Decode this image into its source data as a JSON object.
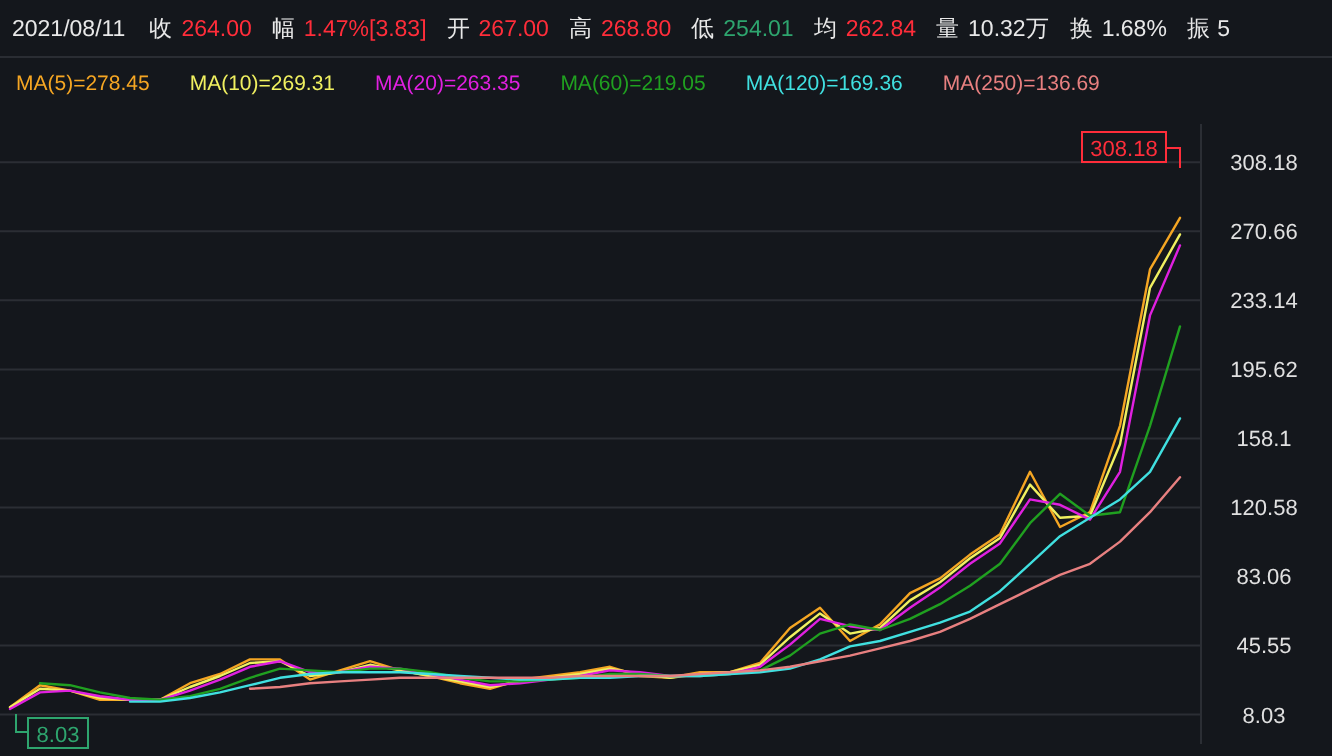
{
  "chart_data": {
    "type": "line",
    "title": "2021/08/11",
    "annotations": [
      "收",
      "264.00",
      "幅",
      "1.47%[3.83]",
      "开",
      "267.00",
      "高",
      "268.80",
      "低",
      "254.01",
      "均",
      "262.84",
      "量",
      "10.32万",
      "换",
      "1.68%",
      "振 5",
      "308.18",
      "8.03"
    ],
    "categories": [
      null,
      null,
      null,
      null,
      null,
      null,
      null,
      null,
      null,
      null,
      null,
      null,
      null,
      null,
      null,
      null,
      null,
      null,
      null,
      null,
      null,
      null,
      null,
      null,
      null,
      null,
      null,
      null,
      null,
      null,
      null,
      null,
      null,
      null,
      null,
      null,
      null,
      null,
      null,
      null
    ],
    "series": [
      {
        "name": "MA(5)=278.45",
        "color": "#f5a623",
        "values": [
          12,
          24,
          21,
          16,
          16,
          16,
          25,
          30,
          38,
          38,
          27,
          32,
          37,
          32,
          29,
          25,
          22,
          27,
          29,
          31,
          34,
          29,
          28,
          31,
          31,
          36,
          55,
          66,
          48,
          57,
          74,
          82,
          95,
          106,
          140,
          110,
          118,
          165,
          250,
          278
        ]
      },
      {
        "name": "MA(10)=269.31",
        "color": "#f0f060",
        "values": [
          12,
          22,
          21,
          17,
          16,
          16,
          23,
          29,
          36,
          37,
          29,
          31,
          35,
          32,
          29,
          26,
          23,
          26,
          28,
          30,
          33,
          30,
          28,
          30,
          31,
          35,
          50,
          63,
          52,
          55,
          70,
          80,
          93,
          104,
          133,
          115,
          116,
          155,
          240,
          269
        ]
      },
      {
        "name": "MA(20)=263.35",
        "color": "#e020e0",
        "values": [
          11,
          20,
          21,
          18,
          16,
          16,
          21,
          27,
          34,
          37,
          31,
          31,
          34,
          33,
          30,
          27,
          24,
          25,
          27,
          29,
          32,
          31,
          29,
          29,
          30,
          34,
          46,
          60,
          56,
          54,
          66,
          77,
          90,
          101,
          125,
          122,
          114,
          140,
          225,
          263
        ]
      },
      {
        "name": "MA(60)=219.05",
        "color": "#20a020",
        "values": [
          null,
          25,
          24,
          20,
          17,
          16,
          18,
          22,
          28,
          33,
          32,
          31,
          33,
          33,
          31,
          28,
          26,
          26,
          27,
          28,
          30,
          30,
          29,
          29,
          30,
          32,
          40,
          52,
          57,
          54,
          60,
          68,
          78,
          90,
          112,
          128,
          116,
          118,
          165,
          219
        ]
      },
      {
        "name": "MA(120)=169.36",
        "color": "#40e0e0",
        "values": [
          null,
          null,
          null,
          null,
          15,
          15,
          17,
          20,
          24,
          28,
          30,
          31,
          31,
          31,
          30,
          29,
          28,
          27,
          27,
          28,
          28,
          29,
          29,
          29,
          30,
          31,
          33,
          38,
          45,
          48,
          53,
          58,
          64,
          75,
          90,
          105,
          115,
          125,
          140,
          169
        ]
      },
      {
        "name": "MA(250)=136.69",
        "color": "#e88080",
        "values": [
          null,
          null,
          null,
          null,
          null,
          null,
          null,
          null,
          22,
          23,
          25,
          26,
          27,
          28,
          28,
          28,
          28,
          28,
          28,
          29,
          29,
          29,
          29,
          30,
          31,
          32,
          34,
          37,
          40,
          44,
          48,
          53,
          60,
          68,
          76,
          84,
          90,
          102,
          118,
          137
        ]
      }
    ],
    "ylim": [
      -8,
      329
    ],
    "yticks": [
      8.03,
      45.55,
      83.06,
      120.58,
      158.1,
      195.62,
      233.14,
      270.66,
      308.18
    ],
    "grid": "y",
    "legend": "top",
    "line_style": "solid",
    "marker": "none"
  }
}
